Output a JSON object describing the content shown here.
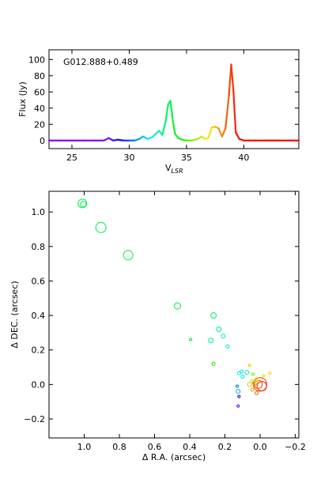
{
  "chart_data": [
    {
      "type": "line",
      "annotation": "G012.888+0.489",
      "ylabel": "Flux (Jy)",
      "xlabel_main": "V",
      "xlabel_sub": "LSR",
      "xlim": [
        23,
        44.8
      ],
      "ylim": [
        -10,
        112
      ],
      "xticks": [
        25,
        30,
        35,
        40
      ],
      "yticks": [
        0,
        20,
        40,
        60,
        80,
        100
      ],
      "x": [
        23.0,
        24.0,
        25.0,
        26.0,
        27.0,
        27.8,
        28.2,
        28.6,
        29.0,
        29.5,
        30.0,
        30.5,
        30.9,
        31.2,
        31.6,
        32.0,
        32.3,
        32.6,
        32.9,
        33.2,
        33.4,
        33.6,
        33.8,
        34.0,
        34.3,
        34.6,
        35.0,
        35.5,
        36.0,
        36.3,
        36.6,
        36.9,
        37.2,
        37.5,
        37.8,
        38.1,
        38.4,
        38.7,
        38.9,
        39.1,
        39.3,
        39.6,
        40.0,
        40.5,
        41.0,
        42.0,
        43.0,
        44.0,
        44.8
      ],
      "y": [
        0,
        0,
        0,
        0,
        0,
        0,
        3,
        0,
        1,
        0,
        0,
        0,
        2,
        5,
        2,
        4,
        8,
        12,
        7,
        25,
        45,
        49,
        25,
        8,
        3,
        1,
        0,
        0,
        2,
        5,
        2,
        3,
        16,
        17,
        15,
        5,
        15,
        55,
        94,
        60,
        10,
        2,
        0,
        0,
        0,
        0,
        0,
        0,
        0
      ]
    },
    {
      "type": "scatter",
      "xlabel": "Δ R.A. (arcsec)",
      "ylabel": "Δ DEC. (arcsec)",
      "xlim": [
        1.2,
        -0.22
      ],
      "ylim": [
        -0.31,
        1.12
      ],
      "xticks": [
        1.0,
        0.8,
        0.6,
        0.4,
        0.2,
        0.0,
        -0.2
      ],
      "xtick_labels": [
        "1.0",
        "0.8",
        "0.6",
        "0.4",
        "0.2",
        "0.0",
        "−0.2"
      ],
      "yticks": [
        -0.2,
        0.0,
        0.2,
        0.4,
        0.6,
        0.8,
        1.0
      ],
      "ytick_labels": [
        "−0.2",
        "0.0",
        "0.2",
        "0.4",
        "0.6",
        "0.8",
        "1.0"
      ],
      "points": [
        {
          "x": 1.01,
          "y": 1.05,
          "v": 33.5,
          "s": 5.5
        },
        {
          "x": 1.005,
          "y": 1.045,
          "v": 33.5,
          "s": 3.5
        },
        {
          "x": 0.905,
          "y": 0.91,
          "v": 33.6,
          "s": 6.5
        },
        {
          "x": 0.75,
          "y": 0.75,
          "v": 33.5,
          "s": 6
        },
        {
          "x": 0.47,
          "y": 0.455,
          "v": 33.4,
          "s": 4
        },
        {
          "x": 0.395,
          "y": 0.26,
          "v": 34.0,
          "s": 1.5
        },
        {
          "x": 0.265,
          "y": 0.12,
          "v": 34.5,
          "s": 2
        },
        {
          "x": 0.265,
          "y": 0.4,
          "v": 33.2,
          "s": 3.5
        },
        {
          "x": 0.235,
          "y": 0.32,
          "v": 32.9,
          "s": 3
        },
        {
          "x": 0.21,
          "y": 0.28,
          "v": 32.5,
          "s": 2.5
        },
        {
          "x": 0.28,
          "y": 0.255,
          "v": 33.0,
          "s": 3
        },
        {
          "x": 0.185,
          "y": 0.22,
          "v": 32.3,
          "s": 2
        },
        {
          "x": 0.12,
          "y": 0.065,
          "v": 32.0,
          "s": 2
        },
        {
          "x": 0.105,
          "y": 0.075,
          "v": 31.6,
          "s": 2
        },
        {
          "x": 0.075,
          "y": 0.07,
          "v": 32.6,
          "s": 2.5
        },
        {
          "x": 0.13,
          "y": -0.01,
          "v": 30.5,
          "s": 1.5
        },
        {
          "x": 0.125,
          "y": -0.04,
          "v": 31.2,
          "s": 2.5
        },
        {
          "x": 0.1,
          "y": 0.045,
          "v": 32.2,
          "s": 2
        },
        {
          "x": 0.06,
          "y": 0.11,
          "v": 37.3,
          "s": 1.5
        },
        {
          "x": 0.06,
          "y": 0.0,
          "v": 37.5,
          "s": 2.5
        },
        {
          "x": 0.045,
          "y": 0.02,
          "v": 36.3,
          "s": 2
        },
        {
          "x": 0.045,
          "y": -0.03,
          "v": 37.8,
          "s": 2
        },
        {
          "x": 0.03,
          "y": 0.01,
          "v": 38.1,
          "s": 3
        },
        {
          "x": 0.02,
          "y": 0.03,
          "v": 36.9,
          "s": 2.5
        },
        {
          "x": 0.01,
          "y": 0.0,
          "v": 38.7,
          "s": 5
        },
        {
          "x": 0.0,
          "y": 0.0,
          "v": 38.9,
          "s": 8.5
        },
        {
          "x": -0.01,
          "y": -0.01,
          "v": 39.1,
          "s": 6
        },
        {
          "x": -0.055,
          "y": 0.065,
          "v": 37.2,
          "s": 1.5
        },
        {
          "x": -0.02,
          "y": 0.05,
          "v": 36.6,
          "s": 1.5
        },
        {
          "x": 0.02,
          "y": -0.05,
          "v": 38.4,
          "s": 2
        },
        {
          "x": 0.04,
          "y": 0.06,
          "v": 35.5,
          "s": 1.5
        },
        {
          "x": 0.12,
          "y": -0.07,
          "v": 29.0,
          "s": 1.5
        },
        {
          "x": 0.125,
          "y": -0.125,
          "v": 28.2,
          "s": 1.5
        }
      ]
    }
  ]
}
